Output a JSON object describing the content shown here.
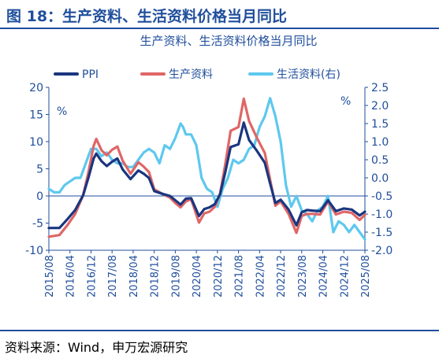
{
  "figure": {
    "title": "图 18：生产资料、生活资料价格当月同比",
    "source": "资料来源：Wind，申万宏源研究"
  },
  "chart_data": {
    "type": "line",
    "title": "生产资料、生活资料价格当月同比",
    "left_unit": "%",
    "right_unit": "%",
    "ylim_left": [
      -10,
      20
    ],
    "ylim_right": [
      -2.0,
      2.5
    ],
    "left_ticks": [
      "-10",
      "-5",
      "0",
      "5",
      "10",
      "15",
      "20"
    ],
    "right_ticks": [
      "-2.0",
      "-1.5",
      "-1.0",
      "-0.5",
      "0.0",
      "0.5",
      "1.0",
      "1.5",
      "2.0",
      "2.5"
    ],
    "x_range": [
      "2015-08",
      "2025-08"
    ],
    "x_ticks": [
      "2015/08",
      "2016/04",
      "2016/12",
      "2017/08",
      "2018/04",
      "2018/12",
      "2019/08",
      "2020/04",
      "2020/12",
      "2021/08",
      "2022/04",
      "2022/12",
      "2023/08",
      "2024/04",
      "2024/12",
      "2025/08"
    ],
    "legend_position": "top",
    "grid": false,
    "series": [
      {
        "name": "PPI",
        "axis": "left",
        "color": "#1a3680",
        "points": [
          [
            "2015-08",
            -5.9
          ],
          [
            "2015-12",
            -5.9
          ],
          [
            "2016-03",
            -4.3
          ],
          [
            "2016-06",
            -2.6
          ],
          [
            "2016-09",
            0.1
          ],
          [
            "2016-11",
            3.3
          ],
          [
            "2017-01",
            6.9
          ],
          [
            "2017-02",
            7.8
          ],
          [
            "2017-04",
            6.4
          ],
          [
            "2017-06",
            5.5
          ],
          [
            "2017-08",
            6.3
          ],
          [
            "2017-10",
            6.9
          ],
          [
            "2017-12",
            4.9
          ],
          [
            "2018-03",
            3.1
          ],
          [
            "2018-06",
            4.7
          ],
          [
            "2018-08",
            4.1
          ],
          [
            "2018-10",
            3.3
          ],
          [
            "2018-12",
            0.9
          ],
          [
            "2019-03",
            0.4
          ],
          [
            "2019-06",
            0.0
          ],
          [
            "2019-08",
            -0.8
          ],
          [
            "2019-10",
            -1.6
          ],
          [
            "2019-12",
            -0.5
          ],
          [
            "2020-02",
            -0.4
          ],
          [
            "2020-05",
            -3.7
          ],
          [
            "2020-07",
            -2.4
          ],
          [
            "2020-09",
            -2.1
          ],
          [
            "2020-11",
            -1.5
          ],
          [
            "2021-01",
            0.3
          ],
          [
            "2021-03",
            4.4
          ],
          [
            "2021-05",
            9.0
          ],
          [
            "2021-08",
            9.5
          ],
          [
            "2021-10",
            13.5
          ],
          [
            "2021-12",
            10.3
          ],
          [
            "2022-03",
            8.3
          ],
          [
            "2022-06",
            6.1
          ],
          [
            "2022-08",
            2.3
          ],
          [
            "2022-10",
            -1.3
          ],
          [
            "2022-12",
            -0.7
          ],
          [
            "2023-03",
            -2.5
          ],
          [
            "2023-06",
            -5.4
          ],
          [
            "2023-08",
            -3.0
          ],
          [
            "2023-10",
            -2.6
          ],
          [
            "2023-12",
            -2.7
          ],
          [
            "2024-03",
            -2.8
          ],
          [
            "2024-06",
            -0.8
          ],
          [
            "2024-09",
            -2.8
          ],
          [
            "2024-12",
            -2.3
          ],
          [
            "2025-03",
            -2.5
          ],
          [
            "2025-06",
            -3.6
          ],
          [
            "2025-08",
            -2.9
          ]
        ]
      },
      {
        "name": "生产资料",
        "axis": "left",
        "color": "#e06666",
        "points": [
          [
            "2015-08",
            -7.5
          ],
          [
            "2015-12",
            -7.2
          ],
          [
            "2016-03",
            -5.4
          ],
          [
            "2016-06",
            -3.3
          ],
          [
            "2016-09",
            0.1
          ],
          [
            "2016-11",
            4.3
          ],
          [
            "2017-01",
            9.2
          ],
          [
            "2017-02",
            10.5
          ],
          [
            "2017-04",
            8.4
          ],
          [
            "2017-06",
            7.5
          ],
          [
            "2017-08",
            8.5
          ],
          [
            "2017-10",
            9.1
          ],
          [
            "2017-12",
            6.5
          ],
          [
            "2018-03",
            4.1
          ],
          [
            "2018-06",
            6.2
          ],
          [
            "2018-08",
            5.4
          ],
          [
            "2018-10",
            4.4
          ],
          [
            "2018-12",
            1.2
          ],
          [
            "2019-03",
            0.4
          ],
          [
            "2019-06",
            -0.3
          ],
          [
            "2019-08",
            -1.3
          ],
          [
            "2019-10",
            -2.1
          ],
          [
            "2019-12",
            -1.0
          ],
          [
            "2020-02",
            -0.6
          ],
          [
            "2020-05",
            -4.9
          ],
          [
            "2020-07",
            -3.2
          ],
          [
            "2020-09",
            -2.9
          ],
          [
            "2020-11",
            -2.0
          ],
          [
            "2021-01",
            0.4
          ],
          [
            "2021-03",
            5.9
          ],
          [
            "2021-05",
            12.0
          ],
          [
            "2021-08",
            12.7
          ],
          [
            "2021-10",
            17.9
          ],
          [
            "2021-12",
            13.8
          ],
          [
            "2022-03",
            10.7
          ],
          [
            "2022-06",
            7.9
          ],
          [
            "2022-08",
            3.0
          ],
          [
            "2022-10",
            -1.8
          ],
          [
            "2022-12",
            -1.0
          ],
          [
            "2023-03",
            -3.3
          ],
          [
            "2023-06",
            -6.8
          ],
          [
            "2023-08",
            -3.7
          ],
          [
            "2023-10",
            -3.3
          ],
          [
            "2023-12",
            -3.3
          ],
          [
            "2024-03",
            -3.4
          ],
          [
            "2024-06",
            -1.0
          ],
          [
            "2024-09",
            -3.4
          ],
          [
            "2024-12",
            -2.9
          ],
          [
            "2025-03",
            -3.1
          ],
          [
            "2025-06",
            -4.4
          ],
          [
            "2025-08",
            -3.5
          ]
        ]
      },
      {
        "name": "生活资料(右)",
        "axis": "right",
        "color": "#5ec8ee",
        "points": [
          [
            "2015-08",
            -0.3
          ],
          [
            "2015-10",
            -0.4
          ],
          [
            "2015-12",
            -0.4
          ],
          [
            "2016-02",
            -0.2
          ],
          [
            "2016-04",
            -0.1
          ],
          [
            "2016-06",
            0.0
          ],
          [
            "2016-08",
            0.0
          ],
          [
            "2016-10",
            0.4
          ],
          [
            "2016-12",
            0.8
          ],
          [
            "2017-02",
            0.8
          ],
          [
            "2017-04",
            0.6
          ],
          [
            "2017-06",
            0.7
          ],
          [
            "2017-08",
            0.5
          ],
          [
            "2017-10",
            0.4
          ],
          [
            "2017-12",
            0.4
          ],
          [
            "2018-02",
            0.3
          ],
          [
            "2018-04",
            0.3
          ],
          [
            "2018-06",
            0.5
          ],
          [
            "2018-08",
            0.7
          ],
          [
            "2018-10",
            0.8
          ],
          [
            "2018-12",
            0.7
          ],
          [
            "2019-02",
            0.4
          ],
          [
            "2019-04",
            0.9
          ],
          [
            "2019-06",
            0.8
          ],
          [
            "2019-08",
            1.1
          ],
          [
            "2019-10",
            1.5
          ],
          [
            "2019-11",
            1.4
          ],
          [
            "2019-12",
            1.2
          ],
          [
            "2020-02",
            1.2
          ],
          [
            "2020-04",
            0.9
          ],
          [
            "2020-06",
            0.0
          ],
          [
            "2020-08",
            -0.3
          ],
          [
            "2020-10",
            -0.4
          ],
          [
            "2020-12",
            -0.8
          ],
          [
            "2021-02",
            -0.3
          ],
          [
            "2021-04",
            0.0
          ],
          [
            "2021-06",
            0.5
          ],
          [
            "2021-08",
            0.4
          ],
          [
            "2021-10",
            0.5
          ],
          [
            "2021-12",
            0.8
          ],
          [
            "2022-02",
            0.9
          ],
          [
            "2022-04",
            1.4
          ],
          [
            "2022-06",
            1.7
          ],
          [
            "2022-08",
            2.2
          ],
          [
            "2022-10",
            1.7
          ],
          [
            "2022-12",
            1.0
          ],
          [
            "2023-02",
            -0.2
          ],
          [
            "2023-04",
            -0.8
          ],
          [
            "2023-06",
            -0.5
          ],
          [
            "2023-08",
            -0.9
          ],
          [
            "2023-10",
            -1.0
          ],
          [
            "2023-12",
            -1.2
          ],
          [
            "2024-02",
            -0.9
          ],
          [
            "2024-04",
            -0.8
          ],
          [
            "2024-06",
            -0.5
          ],
          [
            "2024-08",
            -1.5
          ],
          [
            "2024-10",
            -1.2
          ],
          [
            "2024-12",
            -1.3
          ],
          [
            "2025-02",
            -1.5
          ],
          [
            "2025-04",
            -1.3
          ],
          [
            "2025-06",
            -1.5
          ],
          [
            "2025-08",
            -1.7
          ]
        ]
      }
    ]
  }
}
